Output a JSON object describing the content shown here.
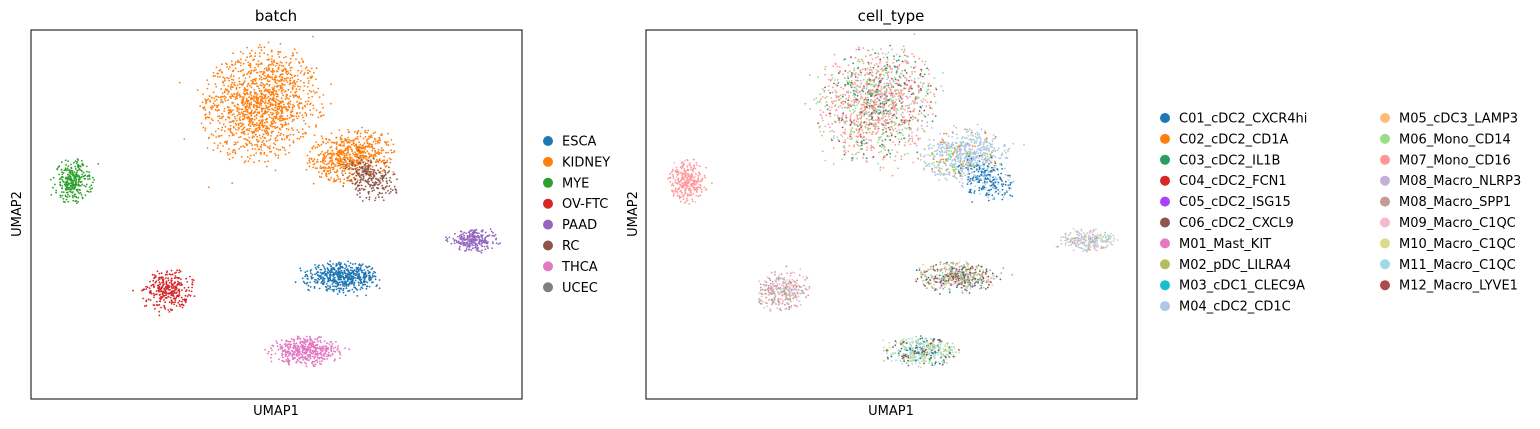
{
  "chart_data": [
    {
      "type": "scatter",
      "title": "batch",
      "xlabel": "UMAP1",
      "ylabel": "UMAP2",
      "xlim": [
        0,
        100
      ],
      "ylim": [
        0,
        100
      ],
      "grid": false,
      "ticks": false,
      "legend_position": "right",
      "legend_columns": 1,
      "legend": [
        {
          "label": "ESCA",
          "color": "#1f77b4"
        },
        {
          "label": "KIDNEY",
          "color": "#ff7f0e"
        },
        {
          "label": "MYE",
          "color": "#2ca02c"
        },
        {
          "label": "OV-FTC",
          "color": "#d62728"
        },
        {
          "label": "PAAD",
          "color": "#9467bd"
        },
        {
          "label": "RC",
          "color": "#8c564b"
        },
        {
          "label": "THCA",
          "color": "#e377c2"
        },
        {
          "label": "UCEC",
          "color": "#7f7f7f"
        }
      ],
      "clusters": [
        {
          "label": "KIDNEY",
          "cx": 47,
          "cy": 80,
          "rx": 12,
          "ry": 16,
          "rot": -10,
          "n": 1400
        },
        {
          "label": "KIDNEY",
          "cx": 65,
          "cy": 66,
          "rx": 9,
          "ry": 7,
          "rot": 20,
          "n": 650
        },
        {
          "label": "RC",
          "cx": 69,
          "cy": 60,
          "rx": 5,
          "ry": 7,
          "rot": 35,
          "n": 260
        },
        {
          "label": "MYE",
          "cx": 8.5,
          "cy": 59,
          "rx": 4,
          "ry": 6,
          "rot": 0,
          "n": 300
        },
        {
          "label": "PAAD",
          "cx": 90,
          "cy": 43,
          "rx": 5.5,
          "ry": 3,
          "rot": 0,
          "n": 260
        },
        {
          "label": "ESCA",
          "cx": 63.5,
          "cy": 33,
          "rx": 8,
          "ry": 4,
          "rot": 0,
          "n": 550
        },
        {
          "label": "OV-FTC",
          "cx": 28,
          "cy": 29.5,
          "rx": 5,
          "ry": 6,
          "rot": -25,
          "n": 320
        },
        {
          "label": "THCA",
          "cx": 56,
          "cy": 13,
          "rx": 7.5,
          "ry": 4,
          "rot": 0,
          "n": 450
        }
      ]
    },
    {
      "type": "scatter",
      "title": "cell_type",
      "xlabel": "UMAP1",
      "ylabel": "UMAP2",
      "xlim": [
        0,
        100
      ],
      "ylim": [
        0,
        100
      ],
      "grid": false,
      "ticks": false,
      "legend_position": "right",
      "legend_columns": 2,
      "legend": [
        {
          "label": "C01_cDC2_CXCR4hi",
          "color": "#1f77b4"
        },
        {
          "label": "C02_cDC2_CD1A",
          "color": "#ff7f0e"
        },
        {
          "label": "C03_cDC2_IL1B",
          "color": "#279e68"
        },
        {
          "label": "C04_cDC2_FCN1",
          "color": "#d62728"
        },
        {
          "label": "C05_cDC2_ISG15",
          "color": "#aa40fc"
        },
        {
          "label": "C06_cDC2_CXCL9",
          "color": "#8c564b"
        },
        {
          "label": "M01_Mast_KIT",
          "color": "#e377c2"
        },
        {
          "label": "M02_pDC_LILRA4",
          "color": "#b5bd61"
        },
        {
          "label": "M03_cDC1_CLEC9A",
          "color": "#17becf"
        },
        {
          "label": "M04_cDC2_CD1C",
          "color": "#aec7e8"
        },
        {
          "label": "M05_cDC3_LAMP3",
          "color": "#ffbb78"
        },
        {
          "label": "M06_Mono_CD14",
          "color": "#98df8a"
        },
        {
          "label": "M07_Mono_CD16",
          "color": "#ff9896"
        },
        {
          "label": "M08_Macro_NLRP3",
          "color": "#c5b0d5"
        },
        {
          "label": "M08_Macro_SPP1",
          "color": "#c49c94"
        },
        {
          "label": "M09_Macro_C1QC",
          "color": "#f7b6d2"
        },
        {
          "label": "M10_Macro_C1QC",
          "color": "#dbdb8d"
        },
        {
          "label": "M11_Macro_C1QC",
          "color": "#9edae5"
        },
        {
          "label": "M12_Macro_LYVE1",
          "color": "#ad494a"
        }
      ],
      "clusters": [
        {
          "cx": 47,
          "cy": 80,
          "rx": 12,
          "ry": 16,
          "rot": -10,
          "n": 1400,
          "mix": {
            "M07_Mono_CD16": 5,
            "M06_Mono_CD14": 2,
            "C03_cDC2_IL1B": 1,
            "M12_Macro_LYVE1": 1,
            "M04_cDC2_CD1C": 1
          }
        },
        {
          "cx": 65,
          "cy": 66,
          "rx": 9,
          "ry": 7,
          "rot": 20,
          "n": 650,
          "mix": {
            "M04_cDC2_CD1C": 6,
            "M06_Mono_CD14": 1,
            "C02_cDC2_CD1A": 1
          }
        },
        {
          "cx": 69,
          "cy": 60,
          "rx": 5,
          "ry": 7,
          "rot": 35,
          "n": 260,
          "mix": {
            "C01_cDC2_CXCR4hi": 5,
            "M04_cDC2_CD1C": 2,
            "M11_Macro_C1QC": 1
          }
        },
        {
          "cx": 8.5,
          "cy": 59,
          "rx": 4,
          "ry": 6,
          "rot": 0,
          "n": 300,
          "mix": {
            "M07_Mono_CD16": 8,
            "M09_Macro_C1QC": 1
          }
        },
        {
          "cx": 90,
          "cy": 43,
          "rx": 5.5,
          "ry": 3,
          "rot": 0,
          "n": 260,
          "mix": {
            "M09_Macro_C1QC": 3,
            "M11_Macro_C1QC": 2,
            "M06_Mono_CD14": 1,
            "M04_cDC2_CD1C": 1,
            "M08_Macro_SPP1": 1
          }
        },
        {
          "cx": 63.5,
          "cy": 33,
          "rx": 8,
          "ry": 4,
          "rot": 0,
          "n": 550,
          "mix": {
            "M06_Mono_CD14": 2,
            "C06_cDC2_CXCL9": 2,
            "M08_Macro_SPP1": 2,
            "M09_Macro_C1QC": 1,
            "M10_Macro_C1QC": 1,
            "C01_cDC2_CXCR4hi": 1
          }
        },
        {
          "cx": 28,
          "cy": 29.5,
          "rx": 5,
          "ry": 6,
          "rot": -25,
          "n": 320,
          "mix": {
            "M08_Macro_SPP1": 4,
            "M09_Macro_C1QC": 3,
            "M11_Macro_C1QC": 1
          }
        },
        {
          "cx": 56,
          "cy": 13,
          "rx": 7.5,
          "ry": 4,
          "rot": 0,
          "n": 450,
          "mix": {
            "M11_Macro_C1QC": 2,
            "M10_Macro_C1QC": 2,
            "C01_cDC2_CXCR4hi": 1,
            "M06_Mono_CD14": 1,
            "C06_cDC2_CXCL9": 1
          }
        }
      ]
    }
  ]
}
